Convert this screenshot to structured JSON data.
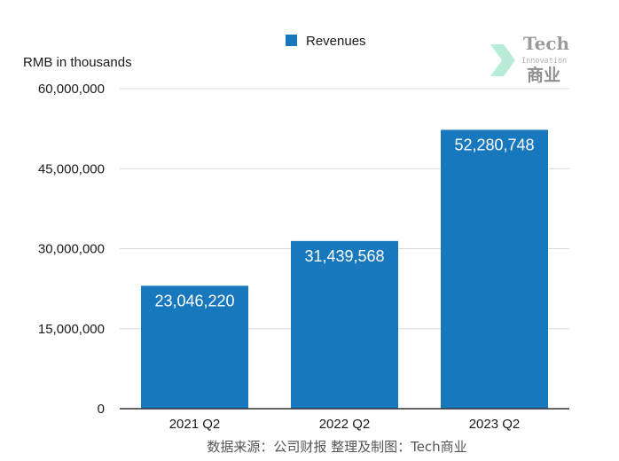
{
  "chart_data": {
    "type": "bar",
    "categories": [
      "2021 Q2",
      "2022 Q2",
      "2023 Q2"
    ],
    "series": [
      {
        "name": "Revenues",
        "values": [
          23046220,
          31439568,
          52280748
        ]
      }
    ],
    "data_labels": [
      "23,046,220",
      "31,439,568",
      "52,280,748"
    ],
    "unit_label": "RMB in thousands",
    "yticks": [
      {
        "value": 0,
        "label": "0"
      },
      {
        "value": 15000000,
        "label": "15,000,000"
      },
      {
        "value": 30000000,
        "label": "30,000,000"
      },
      {
        "value": 45000000,
        "label": "45,000,000"
      },
      {
        "value": 60000000,
        "label": "60,000,000"
      }
    ],
    "ylim": [
      0,
      60000000
    ],
    "grid": true,
    "legend_position": "top-center",
    "bar_color": "#1878be"
  },
  "source_note": "数据来源：公司财报 整理及制图：Tech商业",
  "watermark": {
    "line1": "Tech",
    "line2": "Innovation",
    "line3": "商业"
  },
  "colors": {
    "grid": "#d9d9d9",
    "axis": "#333333",
    "watermark_arrow": "#b9ebd9"
  }
}
